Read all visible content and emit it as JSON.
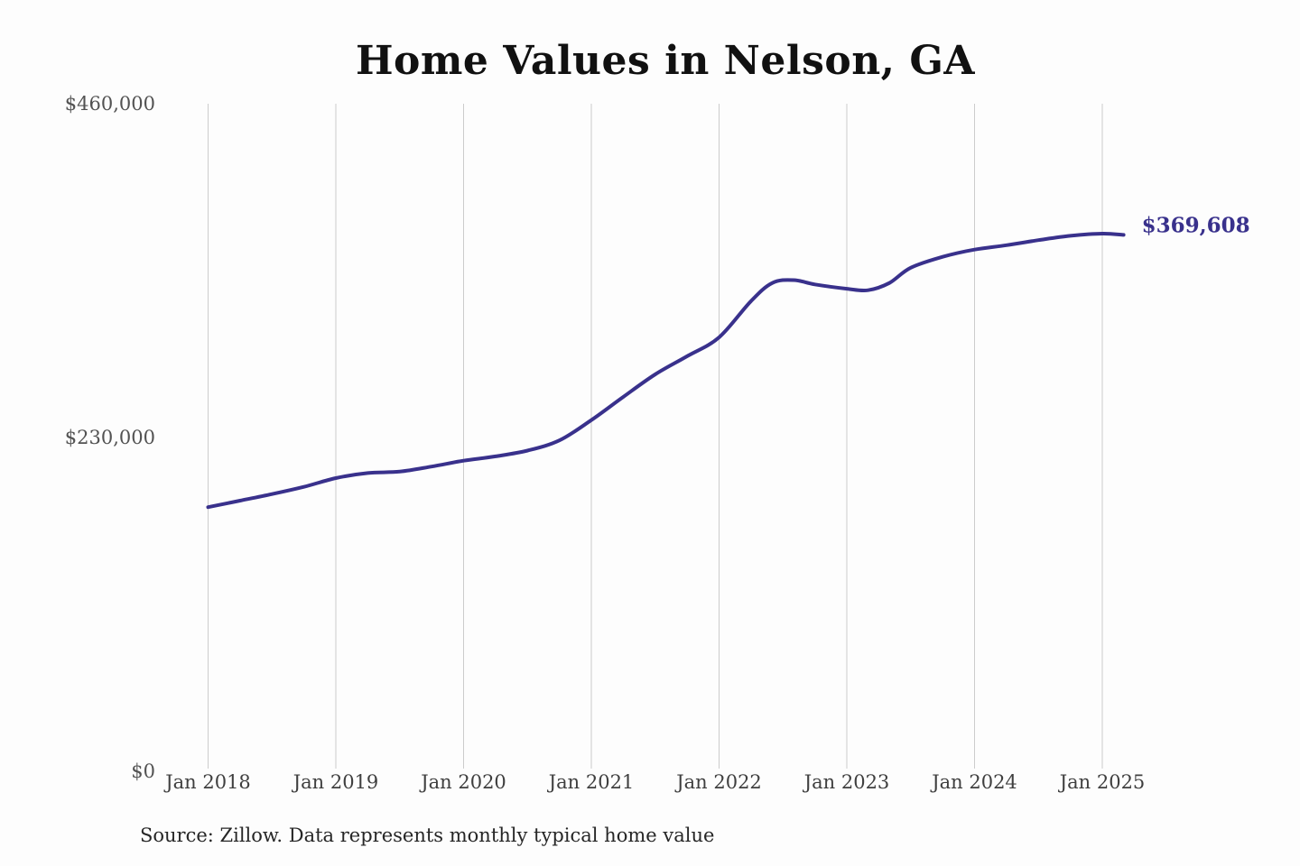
{
  "page": {
    "background_color": "#fdfdfd"
  },
  "chart": {
    "source_note": "Source: Zillow. Data represents monthly typical home value",
    "colors": {
      "line": "#39318c",
      "gridline": "#cccccc",
      "title": "#111111",
      "y_tick_label": "#525252",
      "x_tick_label": "#3f3f3f",
      "source_text": "#262626",
      "end_label": "#39318c"
    }
  },
  "chart_data": {
    "type": "line",
    "title": "Home Values in Nelson, GA",
    "xlabel": "",
    "ylabel": "",
    "ylim": [
      0,
      460000
    ],
    "grid": "vertical-only",
    "legend": "none",
    "y_ticks": [
      {
        "value": 0,
        "label": "$0"
      },
      {
        "value": 230000,
        "label": "$230,000"
      },
      {
        "value": 460000,
        "label": "$460,000"
      }
    ],
    "x_ticks": [
      {
        "date": "2018-01",
        "label": "Jan 2018"
      },
      {
        "date": "2019-01",
        "label": "Jan 2019"
      },
      {
        "date": "2020-01",
        "label": "Jan 2020"
      },
      {
        "date": "2021-01",
        "label": "Jan 2021"
      },
      {
        "date": "2022-01",
        "label": "Jan 2022"
      },
      {
        "date": "2023-01",
        "label": "Jan 2023"
      },
      {
        "date": "2024-01",
        "label": "Jan 2024"
      },
      {
        "date": "2025-01",
        "label": "Jan 2025"
      }
    ],
    "series": [
      {
        "name": "Monthly typical home value",
        "points": [
          [
            "2018-01",
            182000
          ],
          [
            "2018-04",
            186500
          ],
          [
            "2018-07",
            191000
          ],
          [
            "2018-10",
            196000
          ],
          [
            "2019-01",
            202000
          ],
          [
            "2019-04",
            205500
          ],
          [
            "2019-07",
            206500
          ],
          [
            "2019-10",
            210000
          ],
          [
            "2020-01",
            214000
          ],
          [
            "2020-04",
            217000
          ],
          [
            "2020-07",
            221000
          ],
          [
            "2020-10",
            228000
          ],
          [
            "2021-01",
            242000
          ],
          [
            "2021-04",
            258000
          ],
          [
            "2021-07",
            273500
          ],
          [
            "2021-10",
            286000
          ],
          [
            "2022-01",
            299000
          ],
          [
            "2022-04",
            324000
          ],
          [
            "2022-06",
            336500
          ],
          [
            "2022-08",
            338500
          ],
          [
            "2022-10",
            335500
          ],
          [
            "2023-01",
            332500
          ],
          [
            "2023-03",
            331500
          ],
          [
            "2023-05",
            336500
          ],
          [
            "2023-07",
            347000
          ],
          [
            "2023-10",
            354500
          ],
          [
            "2024-01",
            359500
          ],
          [
            "2024-04",
            362500
          ],
          [
            "2024-07",
            366000
          ],
          [
            "2024-10",
            369000
          ],
          [
            "2025-01",
            370500
          ],
          [
            "2025-03",
            369608
          ]
        ]
      }
    ],
    "end_value": 369608,
    "end_value_label": "$369,608"
  }
}
